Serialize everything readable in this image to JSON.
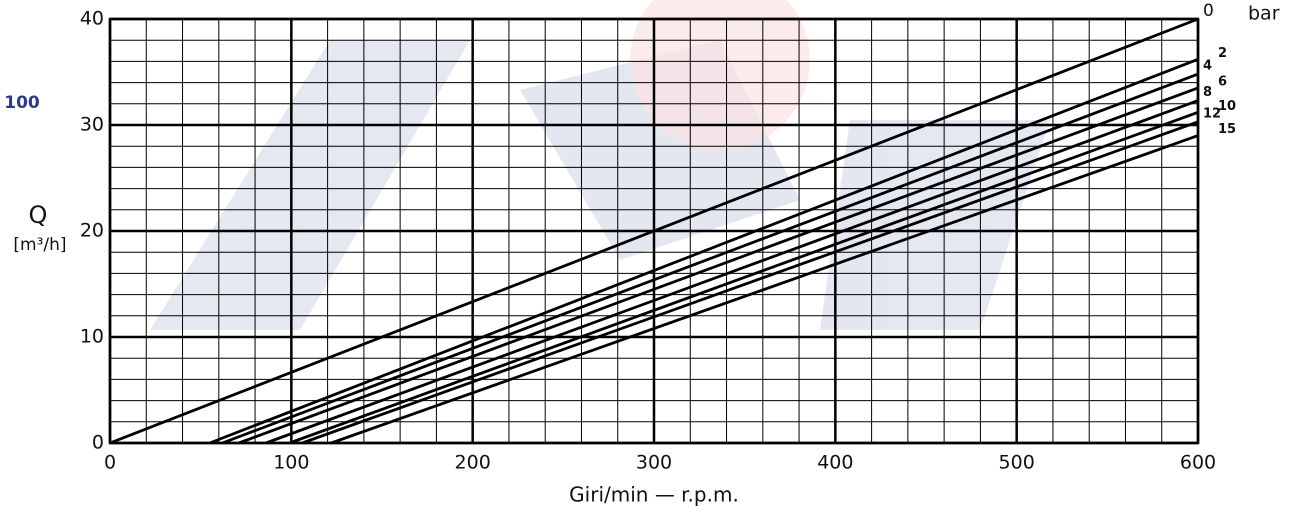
{
  "chart_data": {
    "type": "line",
    "side_label": "100",
    "y_label": "Q",
    "y_unit": "[m³/h]",
    "x_label": "Giri/min — r.p.m.",
    "legend_unit": "bar",
    "xlim": [
      0,
      600
    ],
    "xticks": [
      0,
      100,
      200,
      300,
      400,
      500,
      600
    ],
    "ylim": [
      0,
      40
    ],
    "yticks": [
      0,
      10,
      20,
      30,
      40
    ],
    "grid": true,
    "color": "#000000",
    "series": [
      {
        "name": "0",
        "x": [
          0,
          600
        ],
        "values": [
          0,
          40
        ]
      },
      {
        "name": "2",
        "x": [
          55,
          600
        ],
        "values": [
          0,
          36.2
        ]
      },
      {
        "name": "4",
        "x": [
          62,
          600
        ],
        "values": [
          0,
          34.8
        ]
      },
      {
        "name": "6",
        "x": [
          71,
          600
        ],
        "values": [
          0,
          33.5
        ]
      },
      {
        "name": "8",
        "x": [
          86,
          600
        ],
        "values": [
          0,
          32.3
        ]
      },
      {
        "name": "10",
        "x": [
          99,
          600
        ],
        "values": [
          0,
          31.2
        ]
      },
      {
        "name": "12",
        "x": [
          106,
          600
        ],
        "values": [
          0,
          30.3
        ]
      },
      {
        "name": "15",
        "x": [
          122,
          600
        ],
        "values": [
          0,
          29
        ]
      }
    ]
  }
}
